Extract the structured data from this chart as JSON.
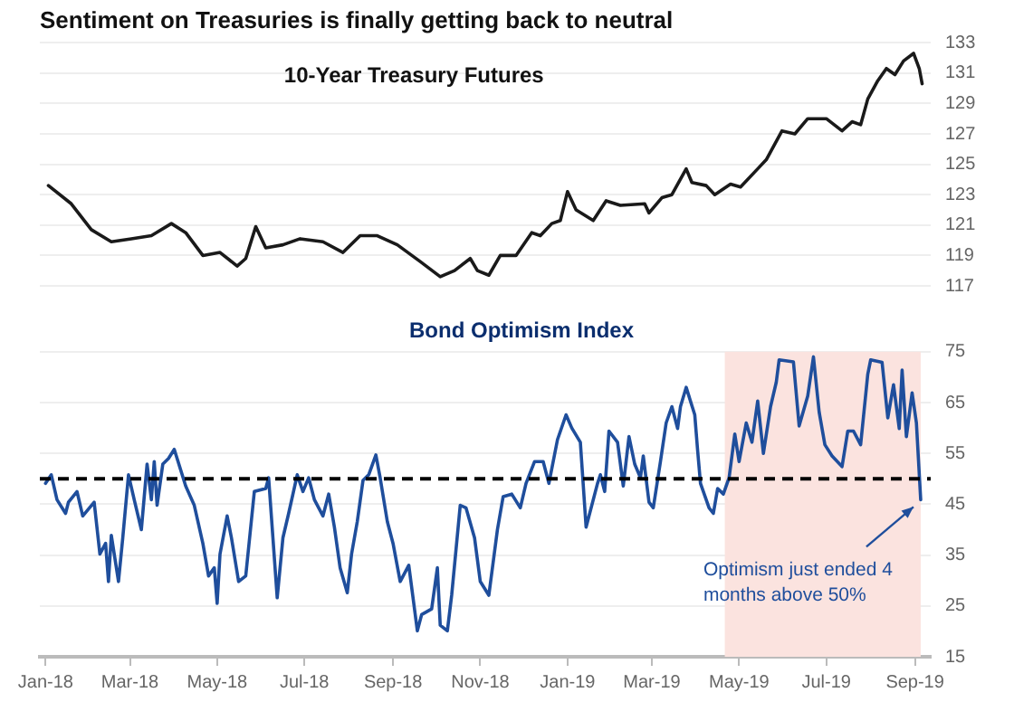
{
  "chart_data": [
    {
      "type": "line",
      "title": "Sentiment on Treasuries is finally getting back to neutral",
      "subtitle": "10-Year Treasury Futures",
      "tick_labels": "y",
      "grid": "y",
      "legend": false,
      "xlim": [
        "2017-12-28",
        "2019-09-12"
      ],
      "ylim": [
        117,
        133
      ],
      "yticks": [
        117,
        119,
        121,
        123,
        125,
        127,
        129,
        131,
        133
      ],
      "x": [
        "2018-01-03",
        "2018-01-19",
        "2018-02-02",
        "2018-02-16",
        "2018-03-02",
        "2018-03-16",
        "2018-03-30",
        "2018-04-09",
        "2018-04-21",
        "2018-05-03",
        "2018-05-15",
        "2018-05-21",
        "2018-05-28",
        "2018-06-04",
        "2018-06-16",
        "2018-06-28",
        "2018-07-14",
        "2018-07-28",
        "2018-08-09",
        "2018-08-21",
        "2018-09-04",
        "2018-09-20",
        "2018-10-04",
        "2018-10-14",
        "2018-10-25",
        "2018-10-30",
        "2018-11-07",
        "2018-11-15",
        "2018-11-26",
        "2018-12-07",
        "2018-12-13",
        "2018-12-21",
        "2018-12-27",
        "2019-01-01",
        "2019-01-07",
        "2019-01-19",
        "2019-01-28",
        "2019-02-07",
        "2019-02-24",
        "2019-02-27",
        "2019-03-08",
        "2019-03-15",
        "2019-03-25",
        "2019-03-29",
        "2019-04-08",
        "2019-04-14",
        "2019-04-25",
        "2019-05-02",
        "2019-05-14",
        "2019-05-20",
        "2019-05-31",
        "2019-06-09",
        "2019-06-18",
        "2019-07-01",
        "2019-07-12",
        "2019-07-19",
        "2019-07-25",
        "2019-07-30",
        "2019-08-06",
        "2019-08-12",
        "2019-08-18",
        "2019-08-24",
        "2019-08-31",
        "2019-09-04",
        "2019-09-06"
      ],
      "series": [
        {
          "color": "#1a1a1a",
          "values": [
            123.6,
            122.4,
            120.7,
            119.9,
            120.1,
            120.3,
            121.1,
            120.5,
            119.0,
            119.2,
            118.3,
            118.8,
            120.9,
            119.5,
            119.7,
            120.1,
            119.9,
            119.2,
            120.3,
            120.3,
            119.7,
            118.6,
            117.6,
            118.0,
            118.8,
            118.0,
            117.7,
            119.0,
            119.0,
            120.5,
            120.3,
            121.1,
            121.3,
            123.2,
            122.0,
            121.3,
            122.6,
            122.3,
            122.4,
            121.8,
            122.8,
            123.0,
            124.7,
            123.8,
            123.6,
            123.0,
            123.7,
            123.5,
            124.7,
            125.3,
            127.2,
            127.0,
            128.0,
            128.0,
            127.2,
            127.8,
            127.6,
            129.3,
            130.5,
            131.3,
            130.9,
            131.8,
            132.3,
            131.3,
            130.3
          ]
        }
      ]
    },
    {
      "type": "line",
      "title": "Bond Optimism Index",
      "grid": "y",
      "legend": false,
      "xlim": [
        "2017-12-28",
        "2019-09-12"
      ],
      "xticks": [
        {
          "value": "2018-01-01",
          "label": "Jan-18"
        },
        {
          "value": "2018-03-01",
          "label": "Mar-18"
        },
        {
          "value": "2018-05-01",
          "label": "May-18"
        },
        {
          "value": "2018-07-01",
          "label": "Jul-18"
        },
        {
          "value": "2018-09-01",
          "label": "Sep-18"
        },
        {
          "value": "2018-11-01",
          "label": "Nov-18"
        },
        {
          "value": "2019-01-01",
          "label": "Jan-19"
        },
        {
          "value": "2019-03-01",
          "label": "Mar-19"
        },
        {
          "value": "2019-05-01",
          "label": "May-19"
        },
        {
          "value": "2019-07-01",
          "label": "Jul-19"
        },
        {
          "value": "2019-09-01",
          "label": "Sep-19"
        }
      ],
      "ylim": [
        15,
        75
      ],
      "yticks": [
        15,
        25,
        35,
        45,
        55,
        65,
        75
      ],
      "ref_lines": [
        {
          "axis": "y",
          "value": 50,
          "color": "#000000",
          "line_style": "dashed"
        }
      ],
      "bands": [
        {
          "axis": "x",
          "from": "2019-04-21",
          "to": "2019-09-05",
          "color": "#fbe3df"
        }
      ],
      "annotations": [
        {
          "text": "Optimism just ended 4 months above 50%",
          "x": "2019-09-05",
          "y": 45.9
        }
      ],
      "x": [
        "2018-01-01",
        "2018-01-05",
        "2018-01-09",
        "2018-01-15",
        "2018-01-17",
        "2018-01-23",
        "2018-01-27",
        "2018-02-04",
        "2018-02-08",
        "2018-02-12",
        "2018-02-14",
        "2018-02-16",
        "2018-02-21",
        "2018-02-24",
        "2018-02-28",
        "2018-03-04",
        "2018-03-09",
        "2018-03-13",
        "2018-03-16",
        "2018-03-18",
        "2018-03-20",
        "2018-03-24",
        "2018-03-28",
        "2018-04-01",
        "2018-04-09",
        "2018-04-15",
        "2018-04-21",
        "2018-04-25",
        "2018-04-29",
        "2018-05-01",
        "2018-05-03",
        "2018-05-08",
        "2018-05-11",
        "2018-05-16",
        "2018-05-21",
        "2018-05-27",
        "2018-06-04",
        "2018-06-06",
        "2018-06-12",
        "2018-06-16",
        "2018-06-20",
        "2018-06-26",
        "2018-06-30",
        "2018-07-04",
        "2018-07-08",
        "2018-07-14",
        "2018-07-18",
        "2018-07-22",
        "2018-07-26",
        "2018-07-31",
        "2018-08-03",
        "2018-08-07",
        "2018-08-11",
        "2018-08-15",
        "2018-08-20",
        "2018-08-23",
        "2018-08-28",
        "2018-09-01",
        "2018-09-06",
        "2018-09-12",
        "2018-09-18",
        "2018-09-21",
        "2018-09-28",
        "2018-10-02",
        "2018-10-04",
        "2018-10-09",
        "2018-10-12",
        "2018-10-18",
        "2018-10-22",
        "2018-10-28",
        "2018-11-01",
        "2018-11-07",
        "2018-11-13",
        "2018-11-17",
        "2018-11-23",
        "2018-11-29",
        "2018-12-03",
        "2018-12-09",
        "2018-12-15",
        "2018-12-19",
        "2018-12-25",
        "2018-12-31",
        "2019-01-04",
        "2019-01-10",
        "2019-01-14",
        "2019-01-22",
        "2019-01-24",
        "2019-01-27",
        "2019-01-30",
        "2019-02-05",
        "2019-02-09",
        "2019-02-13",
        "2019-02-17",
        "2019-02-21",
        "2019-02-23",
        "2019-02-27",
        "2019-03-02",
        "2019-03-07",
        "2019-03-11",
        "2019-03-15",
        "2019-03-19",
        "2019-03-21",
        "2019-03-25",
        "2019-03-31",
        "2019-04-02",
        "2019-04-04",
        "2019-04-10",
        "2019-04-13",
        "2019-04-16",
        "2019-04-20",
        "2019-04-24",
        "2019-04-28",
        "2019-05-01",
        "2019-05-06",
        "2019-05-10",
        "2019-05-14",
        "2019-05-18",
        "2019-05-23",
        "2019-05-27",
        "2019-05-29",
        "2019-06-08",
        "2019-06-12",
        "2019-06-18",
        "2019-06-22",
        "2019-06-26",
        "2019-06-30",
        "2019-07-05",
        "2019-07-12",
        "2019-07-16",
        "2019-07-20",
        "2019-07-25",
        "2019-07-30",
        "2019-08-01",
        "2019-08-09",
        "2019-08-13",
        "2019-08-17",
        "2019-08-21",
        "2019-08-23",
        "2019-08-26",
        "2019-08-30",
        "2019-09-02",
        "2019-09-05"
      ],
      "series": [
        {
          "color": "#1f4e9c",
          "values": [
            49.1,
            50.8,
            45.9,
            43.2,
            45.4,
            47.5,
            42.7,
            45.4,
            35.2,
            37.3,
            29.8,
            38.9,
            29.8,
            38.4,
            50.8,
            45.9,
            40.0,
            52.9,
            45.9,
            53.4,
            44.8,
            52.9,
            54.0,
            55.8,
            48.6,
            44.8,
            37.3,
            30.9,
            32.5,
            25.5,
            35.2,
            42.7,
            38.4,
            29.8,
            30.9,
            47.5,
            48.1,
            50.2,
            26.6,
            38.4,
            43.2,
            50.8,
            47.5,
            50.2,
            45.9,
            42.7,
            47.0,
            40.5,
            32.5,
            27.6,
            35.2,
            41.6,
            49.7,
            50.8,
            54.7,
            50.2,
            41.6,
            37.3,
            29.8,
            33.0,
            20.1,
            23.3,
            24.4,
            32.5,
            21.2,
            20.1,
            27.1,
            44.8,
            44.3,
            38.4,
            29.8,
            27.1,
            40.0,
            46.5,
            47.0,
            44.3,
            49.1,
            53.4,
            53.4,
            49.1,
            57.7,
            62.6,
            60.0,
            57.2,
            40.5,
            49.1,
            50.8,
            47.5,
            59.4,
            57.2,
            48.6,
            58.3,
            52.9,
            50.2,
            54.5,
            45.4,
            44.3,
            53.4,
            61.0,
            64.2,
            59.9,
            64.2,
            68.0,
            62.6,
            55.6,
            49.1,
            44.3,
            43.2,
            48.1,
            47.0,
            50.2,
            58.8,
            53.4,
            61.0,
            57.2,
            65.3,
            55.0,
            64.2,
            69.0,
            73.4,
            73.0,
            60.4,
            66.3,
            74.0,
            63.1,
            56.7,
            54.5,
            52.4,
            59.4,
            59.4,
            56.7,
            70.6,
            73.4,
            72.9,
            62.0,
            68.5,
            59.9,
            71.4,
            58.3,
            66.9,
            61.0,
            45.9
          ]
        }
      ]
    }
  ]
}
